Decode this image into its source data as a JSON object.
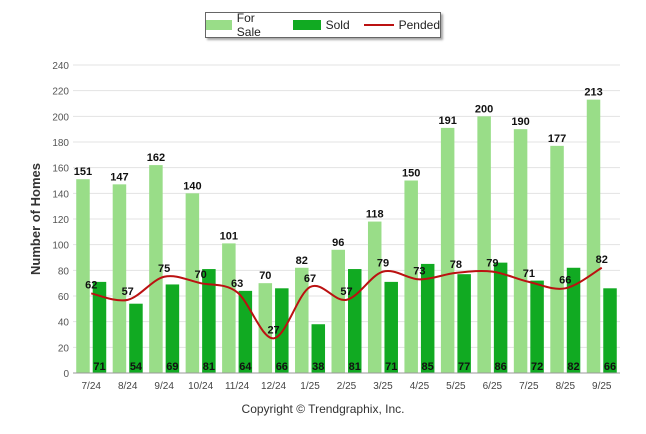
{
  "chart_data": {
    "type": "bar",
    "title": "",
    "xlabel": "",
    "ylabel": "Number of Homes",
    "ylim": [
      0,
      240
    ],
    "yticks": [
      0,
      20,
      40,
      60,
      80,
      100,
      120,
      140,
      160,
      180,
      200,
      220,
      240
    ],
    "categories": [
      "7/24",
      "8/24",
      "9/24",
      "10/24",
      "11/24",
      "12/24",
      "1/25",
      "2/25",
      "3/25",
      "4/25",
      "5/25",
      "6/25",
      "7/25",
      "8/25",
      "9/25"
    ],
    "series": [
      {
        "name": "For Sale",
        "kind": "bar",
        "color": "#99dd88",
        "values": [
          151,
          147,
          162,
          140,
          101,
          70,
          82,
          96,
          118,
          150,
          191,
          200,
          190,
          177,
          213
        ]
      },
      {
        "name": "Sold",
        "kind": "bar",
        "color": "#11aa22",
        "values": [
          71,
          54,
          69,
          81,
          64,
          66,
          38,
          81,
          71,
          85,
          77,
          86,
          72,
          82,
          66
        ]
      },
      {
        "name": "Pended",
        "kind": "line",
        "color": "#bb1111",
        "values": [
          62,
          57,
          75,
          70,
          63,
          27,
          67,
          57,
          79,
          73,
          78,
          79,
          71,
          66,
          82
        ]
      }
    ]
  },
  "footer": {
    "copyright": "Copyright © Trendgraphix, Inc."
  }
}
